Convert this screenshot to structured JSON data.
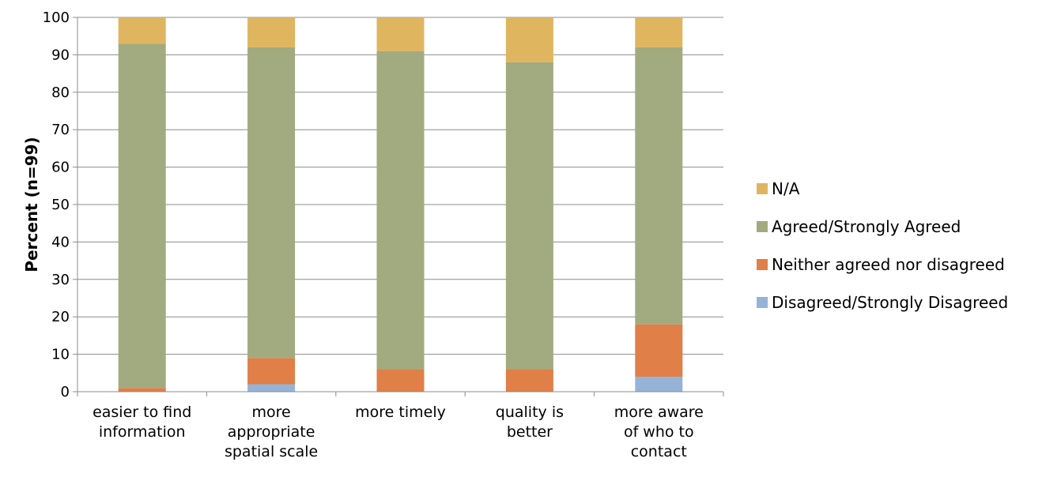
{
  "chart_data": {
    "type": "bar",
    "stacked": true,
    "title": "",
    "xlabel": "",
    "ylabel": "Percent (n=99)",
    "ylim": [
      0,
      100
    ],
    "yticks": [
      0,
      10,
      20,
      30,
      40,
      50,
      60,
      70,
      80,
      90,
      100
    ],
    "grid": true,
    "legend_position": "right",
    "categories": [
      [
        "easier to find",
        "information"
      ],
      [
        "more",
        "appropriate",
        "spatial scale"
      ],
      [
        "more timely"
      ],
      [
        "quality is",
        "better"
      ],
      [
        "more aware",
        "of who to",
        "contact"
      ]
    ],
    "series": [
      {
        "name": "Disagreed/Strongly Disagreed",
        "color": "#95b3d7",
        "values": [
          0,
          2,
          0,
          0,
          4
        ]
      },
      {
        "name": "Neither agreed nor disagreed",
        "color": "#e07f47",
        "values": [
          1,
          7,
          6,
          6,
          14
        ]
      },
      {
        "name": "Agreed/Strongly Agreed",
        "color": "#a2aa7f",
        "values": [
          92,
          83,
          85,
          82,
          74
        ]
      },
      {
        "name": "N/A",
        "color": "#dfb55f",
        "values": [
          7,
          8,
          9,
          12,
          8
        ]
      }
    ],
    "legend_order": [
      "N/A",
      "Agreed/Strongly Agreed",
      "Neither agreed nor disagreed",
      "Disagreed/Strongly Disagreed"
    ]
  }
}
